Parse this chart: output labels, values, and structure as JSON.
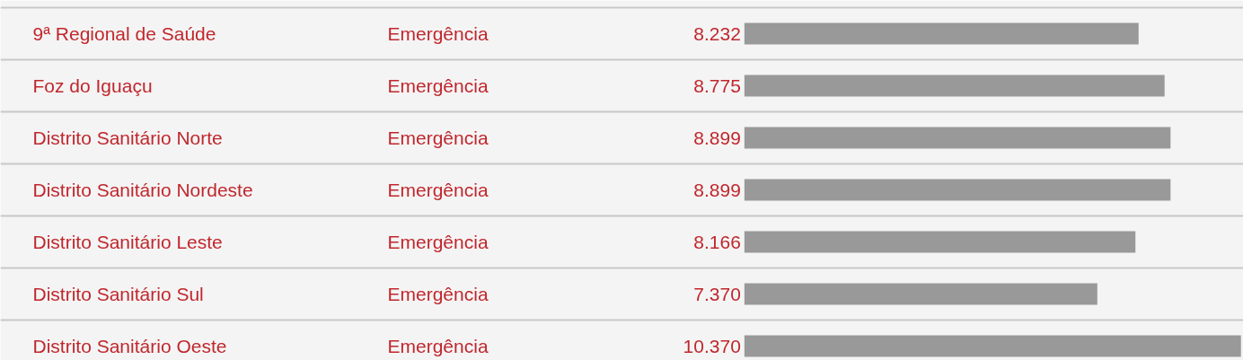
{
  "chart_data": {
    "type": "bar",
    "orientation": "horizontal",
    "categories": [
      "9ª Regional de Saúde",
      "Foz do Iguaçu",
      "Distrito Sanitário Norte",
      "Distrito Sanitário Nordeste",
      "Distrito Sanitário Leste",
      "Distrito Sanitário Sul",
      "Distrito Sanitário Oeste"
    ],
    "values": [
      8232,
      8775,
      8899,
      8899,
      8166,
      7370,
      10370
    ],
    "value_labels": [
      "8.232",
      "8.775",
      "8.899",
      "8.899",
      "8.166",
      "7.370",
      "10.370"
    ],
    "color": "#999999",
    "annotations": [
      "Emergência",
      "Emergência",
      "Emergência",
      "Emergência",
      "Emergência",
      "Emergência",
      "Emergência"
    ]
  }
}
